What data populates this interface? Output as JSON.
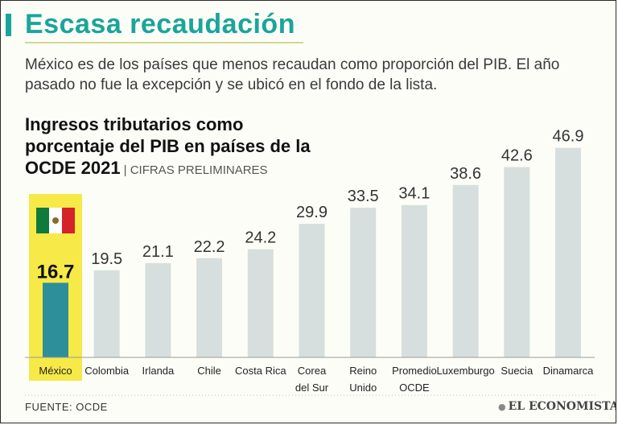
{
  "header": {
    "title": "Escasa recaudación",
    "subtitle": "México es de los países que menos recaudan como proporción del PIB. El año pasado no fue la excepción y se ubicó en el fondo de la lista."
  },
  "chart_heading": {
    "title": "Ingresos tributarios como porcentaje del PIB en países de la OCDE  2021",
    "note": "| CIFRAS PRELIMINARES"
  },
  "footer": {
    "source": "FUENTE:  OCDE",
    "brand": "EL ECONOMISTA"
  },
  "colors": {
    "accent": "#1aa59b",
    "bar": "#d6dfdd",
    "highlight_bar": "#2d8f9a",
    "highlight_bg": "#f6e948"
  },
  "icons": {
    "flag": "mexico-flag-icon"
  },
  "chart_data": {
    "type": "bar",
    "title": "Ingresos tributarios como porcentaje del PIB en países de la OCDE 2021",
    "xlabel": "",
    "ylabel": "",
    "ylim": [
      0,
      50
    ],
    "grid": false,
    "highlight": "México",
    "categories": [
      [
        "México"
      ],
      [
        "Colombia"
      ],
      [
        "Irlanda"
      ],
      [
        "Chile"
      ],
      [
        "Costa Rica"
      ],
      [
        "Corea",
        "del Sur"
      ],
      [
        "Reino",
        "Unido"
      ],
      [
        "Promedio",
        "OCDE"
      ],
      [
        "Luxemburgo"
      ],
      [
        "Suecia"
      ],
      [
        "Dinamarca"
      ]
    ],
    "values": [
      16.7,
      19.5,
      21.1,
      22.2,
      24.2,
      29.9,
      33.5,
      34.1,
      38.6,
      42.6,
      46.9
    ]
  }
}
